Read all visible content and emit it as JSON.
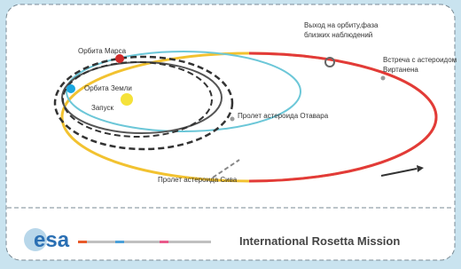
{
  "labels": {
    "mars_orbit": "Орбита Марса",
    "earth_orbit": "Орбита Земли",
    "launch": "Запуск",
    "otawara": "Пролет астероида Отавара",
    "siwa": "Пролет астероида Сива",
    "orbit_entry": [
      "Выход на орбиту,фаза",
      "близких наблюдений"
    ],
    "wirtanen": [
      "Встреча с астероидом",
      "Виртанена"
    ]
  },
  "footer": {
    "logo": "esa",
    "mission": "International Rosetta Mission"
  }
}
